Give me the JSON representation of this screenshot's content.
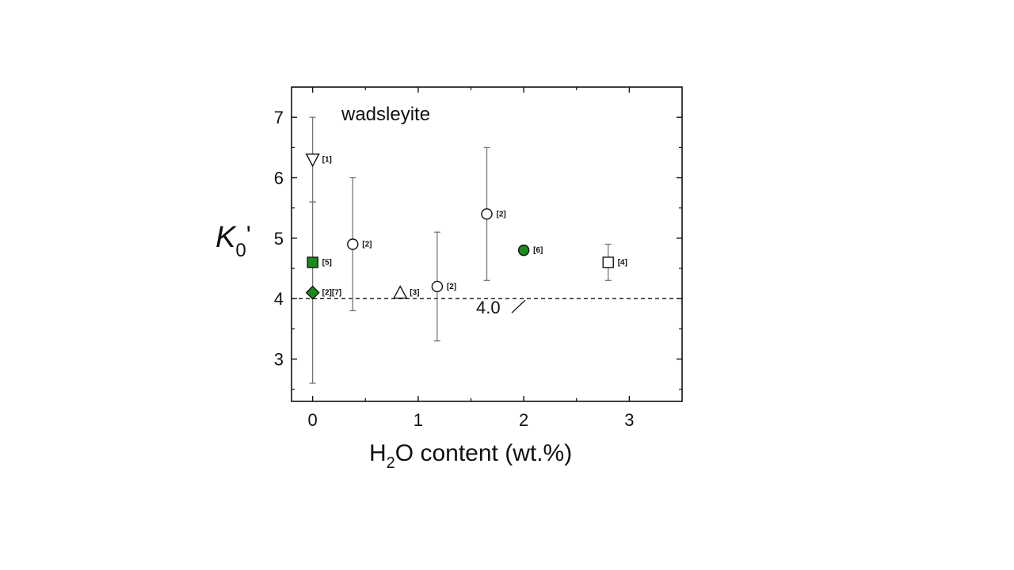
{
  "chart_data": {
    "type": "scatter",
    "annotation": "wadsleyite",
    "xlabel": {
      "main": "H",
      "sub": "2",
      "rest": "O content (wt.%)"
    },
    "ylabel": {
      "main": "K",
      "sub": "0",
      "rest": "'"
    },
    "xlim": [
      -0.2,
      3.5
    ],
    "ylim": [
      2.3,
      7.5
    ],
    "xticks": [
      0,
      1,
      2,
      3
    ],
    "yticks": [
      3,
      4,
      5,
      6,
      7
    ],
    "grid": false,
    "reference_line": {
      "y": 4.0,
      "label": "4.0",
      "style": "dashed"
    },
    "colors": {
      "filled": "#1a8a1a",
      "open": "#ffffff",
      "errorbar": "#777777",
      "axis": "#111111"
    },
    "points": [
      {
        "x": 0,
        "y": 6.3,
        "yerr_low": 5.6,
        "yerr_high": 7.0,
        "marker": "triangle-down",
        "fill": "open",
        "label": "[1]"
      },
      {
        "x": 0,
        "y": 4.6,
        "marker": "square",
        "fill": "filled",
        "label": "[5]"
      },
      {
        "x": 0,
        "y": 4.1,
        "yerr_low": 2.6,
        "yerr_high": 5.6,
        "marker": "diamond",
        "fill": "filled",
        "label": "[2][7]"
      },
      {
        "x": 0.38,
        "y": 4.9,
        "yerr_low": 3.8,
        "yerr_high": 6.0,
        "marker": "circle",
        "fill": "open",
        "label": "[2]"
      },
      {
        "x": 0.83,
        "y": 4.1,
        "marker": "triangle-up",
        "fill": "open",
        "label": "[3]"
      },
      {
        "x": 1.18,
        "y": 4.2,
        "yerr_low": 3.3,
        "yerr_high": 5.1,
        "marker": "circle",
        "fill": "open",
        "label": "[2]"
      },
      {
        "x": 1.65,
        "y": 5.4,
        "yerr_low": 4.3,
        "yerr_high": 6.5,
        "marker": "circle",
        "fill": "open",
        "label": "[2]"
      },
      {
        "x": 2.0,
        "y": 4.8,
        "marker": "circle",
        "fill": "filled",
        "label": "[6]"
      },
      {
        "x": 2.8,
        "y": 4.6,
        "yerr_low": 4.3,
        "yerr_high": 4.9,
        "marker": "square",
        "fill": "open",
        "label": "[4]"
      }
    ]
  }
}
